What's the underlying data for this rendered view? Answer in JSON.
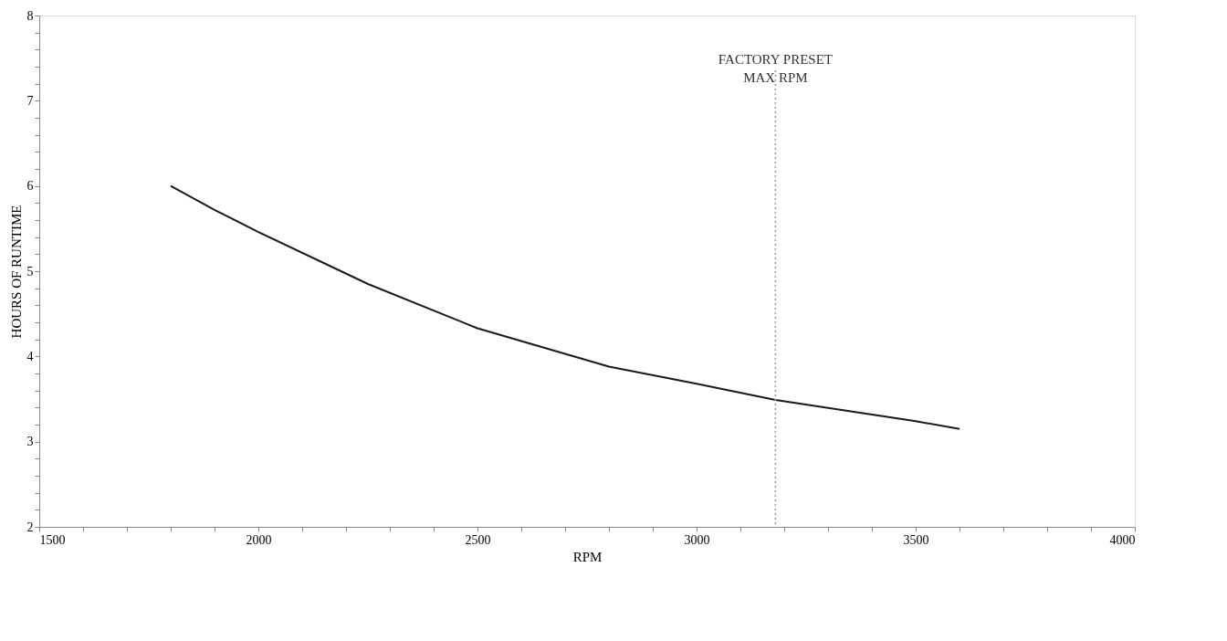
{
  "chart_data": {
    "type": "line",
    "xlabel": "RPM",
    "ylabel": "HOURS OF RUNTIME",
    "x": [
      1800,
      1900,
      2000,
      2250,
      2500,
      2800,
      3000,
      3180,
      3500,
      3600
    ],
    "series": [
      {
        "color": "#1a1a1a",
        "values": [
          6.0,
          5.72,
          5.46,
          4.85,
          4.33,
          3.88,
          3.68,
          3.49,
          3.24,
          3.15
        ]
      }
    ],
    "xlim": [
      1500,
      4000
    ],
    "ylim": [
      2,
      8
    ],
    "xticks": [
      1500,
      {
        "value": 1600,
        "label": null
      },
      {
        "value": 1700,
        "label": null
      },
      {
        "value": 1800,
        "label": null
      },
      {
        "value": 1900,
        "label": null
      },
      2000,
      {
        "value": 2100,
        "label": null
      },
      {
        "value": 2200,
        "label": null
      },
      {
        "value": 2300,
        "label": null
      },
      {
        "value": 2400,
        "label": null
      },
      2500,
      {
        "value": 2600,
        "label": null
      },
      {
        "value": 2700,
        "label": null
      },
      {
        "value": 2800,
        "label": null
      },
      {
        "value": 2900,
        "label": null
      },
      3000,
      {
        "value": 3100,
        "label": null
      },
      {
        "value": 3200,
        "label": null
      },
      {
        "value": 3300,
        "label": null
      },
      {
        "value": 3400,
        "label": null
      },
      3500,
      {
        "value": 3600,
        "label": null
      },
      {
        "value": 3700,
        "label": null
      },
      {
        "value": 3800,
        "label": null
      },
      {
        "value": 3900,
        "label": null
      },
      4000
    ],
    "yticks": [
      2,
      {
        "value": 2.2,
        "label": null
      },
      {
        "value": 2.4,
        "label": null
      },
      {
        "value": 2.6,
        "label": null
      },
      {
        "value": 2.8,
        "label": null
      },
      3,
      {
        "value": 3.2,
        "label": null
      },
      {
        "value": 3.4,
        "label": null
      },
      {
        "value": 3.6,
        "label": null
      },
      {
        "value": 3.8,
        "label": null
      },
      4,
      {
        "value": 4.2,
        "label": null
      },
      {
        "value": 4.4,
        "label": null
      },
      {
        "value": 4.6,
        "label": null
      },
      {
        "value": 4.8,
        "label": null
      },
      5,
      {
        "value": 5.2,
        "label": null
      },
      {
        "value": 5.4,
        "label": null
      },
      {
        "value": 5.6,
        "label": null
      },
      {
        "value": 5.8,
        "label": null
      },
      6,
      {
        "value": 6.2,
        "label": null
      },
      {
        "value": 6.4,
        "label": null
      },
      {
        "value": 6.6,
        "label": null
      },
      {
        "value": 6.8,
        "label": null
      },
      7,
      {
        "value": 7.2,
        "label": null
      },
      {
        "value": 7.4,
        "label": null
      },
      {
        "value": 7.6,
        "label": null
      },
      {
        "value": 7.8,
        "label": null
      },
      8
    ],
    "ref_lines": [
      {
        "axis": "x",
        "value": 3180,
        "label": "FACTORY PRESET\nMAX RPM",
        "color": "#9a9a9a",
        "line_style": "dotted"
      }
    ],
    "grid": false,
    "marker": "none",
    "line_style": "solid"
  }
}
